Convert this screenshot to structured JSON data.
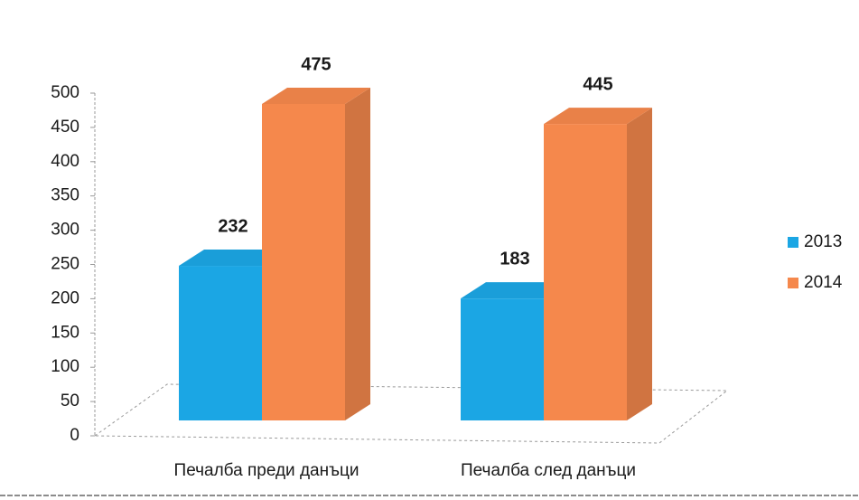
{
  "chart_data": {
    "type": "bar3d",
    "categories": [
      "Печалба преди данъци",
      "Печалба след данъци"
    ],
    "series": [
      {
        "name": "2013",
        "color": "#1ba6e4",
        "values": [
          232,
          183
        ]
      },
      {
        "name": "2014",
        "color": "#f5884c",
        "values": [
          475,
          445
        ]
      }
    ],
    "ylim": [
      0,
      500
    ],
    "yticks": [
      0,
      50,
      100,
      150,
      200,
      250,
      300,
      350,
      400,
      450,
      500
    ],
    "legend": "right",
    "data_labels": true
  }
}
